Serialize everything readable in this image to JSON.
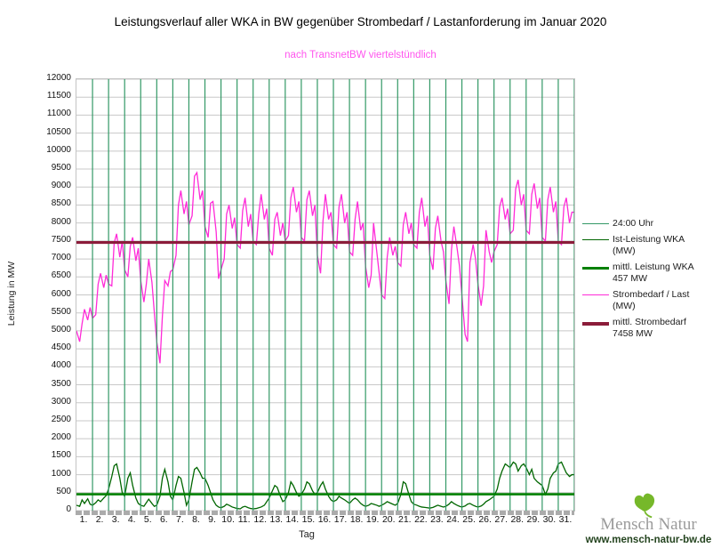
{
  "header": {
    "title": "Leistungsverlauf aller WKA in BW gegenüber  Strombedarf / Lastanforderung im Januar 2020",
    "subtitle": "nach TransnetBW viertelstündlich",
    "subtitle_color": "#ff55ee"
  },
  "axes": {
    "y_label": "Leistung in MW",
    "x_label": "Tag"
  },
  "legend": {
    "items": [
      {
        "label": "24:00 Uhr",
        "sublabel": "",
        "color": "#339966",
        "weight": 1.2
      },
      {
        "label": "Ist-Leistung WKA",
        "sublabel": "(MW)",
        "color": "#006600",
        "weight": 1.3
      },
      {
        "label": "mittl. Leistung WKA",
        "sublabel": "457 MW",
        "color": "#008000",
        "weight": 3.5
      },
      {
        "label": "Strombedarf / Last",
        "sublabel": "(MW)",
        "color": "#ff2bd8",
        "weight": 1.3
      },
      {
        "label": "mittl. Strombedarf",
        "sublabel": "7458 MW",
        "color": "#8b1c3a",
        "weight": 4
      }
    ]
  },
  "footer": {
    "brand_part1": "Mensch",
    "brand_part2": "Natur",
    "url": "www.mensch-natur-bw.de",
    "leaf_color": "#76b82a"
  },
  "chart_data": {
    "type": "line",
    "title": "Leistungsverlauf aller WKA in BW gegenüber Strombedarf / Lastanforderung im Januar 2020",
    "subtitle": "nach TransnetBW viertelstündlich",
    "xlabel": "Tag",
    "ylabel": "Leistung in MW",
    "ylim": [
      0,
      12000
    ],
    "y_step": 500,
    "day_count": 31,
    "x_ticks": [
      "1.",
      "2.",
      "3.",
      "4.",
      "5.",
      "6.",
      "7.",
      "8.",
      "9.",
      "10.",
      "11.",
      "12.",
      "13.",
      "14.",
      "15.",
      "16.",
      "17.",
      "18.",
      "19.",
      "20.",
      "21.",
      "22.",
      "23.",
      "24.",
      "25.",
      "26.",
      "27.",
      "28.",
      "29.",
      "30.",
      "31."
    ],
    "grid_color": "#c8c8c8",
    "day_line": {
      "name": "24:00 Uhr",
      "color": "#339966"
    },
    "sample_offsets": [
      0,
      0.2,
      0.35,
      0.5,
      0.7,
      0.85
    ],
    "series": [
      {
        "name": "Strombedarf / Last (MW)",
        "color": "#ff2bd8",
        "width": 1.3,
        "daily_values": [
          [
            5000,
            4700,
            5200,
            5600,
            5300,
            5650
          ],
          [
            5350,
            5450,
            6300,
            6600,
            6200,
            6550
          ],
          [
            6300,
            6250,
            7450,
            7700,
            7050,
            7500
          ],
          [
            6700,
            6500,
            7350,
            7600,
            6950,
            7300
          ],
          [
            6400,
            5800,
            6300,
            7000,
            6350,
            5500
          ],
          [
            4700,
            4100,
            5400,
            6400,
            6250,
            6650
          ],
          [
            6700,
            7100,
            8500,
            8900,
            8250,
            8600
          ],
          [
            7950,
            8200,
            9300,
            9400,
            8650,
            8900
          ],
          [
            7900,
            7600,
            8550,
            8600,
            7750,
            6450
          ],
          [
            6700,
            7000,
            8250,
            8500,
            7850,
            8150
          ],
          [
            7400,
            7300,
            8350,
            8700,
            7900,
            8250
          ],
          [
            7500,
            7400,
            8250,
            8800,
            8100,
            8400
          ],
          [
            7300,
            7100,
            8100,
            8300,
            7650,
            8000
          ],
          [
            7500,
            7650,
            8700,
            9000,
            8300,
            8600
          ],
          [
            7600,
            7500,
            8650,
            8900,
            8200,
            8500
          ],
          [
            7100,
            6600,
            8050,
            8800,
            8100,
            8300
          ],
          [
            7400,
            7300,
            8450,
            8800,
            8000,
            8300
          ],
          [
            7200,
            7100,
            8100,
            8600,
            7800,
            8000
          ],
          [
            6800,
            6200,
            6550,
            8000,
            7200,
            6600
          ],
          [
            6000,
            5900,
            7050,
            7600,
            7100,
            7350
          ],
          [
            6900,
            6800,
            7950,
            8300,
            7700,
            8000
          ],
          [
            7400,
            7300,
            8300,
            8700,
            7900,
            8200
          ],
          [
            7100,
            6700,
            7850,
            8200,
            7500,
            7200
          ],
          [
            6400,
            5750,
            7250,
            7900,
            7300,
            6800
          ],
          [
            6000,
            4900,
            4700,
            6900,
            7400,
            7000
          ],
          [
            6300,
            5700,
            6250,
            7800,
            7200,
            6900
          ],
          [
            7200,
            7400,
            8450,
            8700,
            8100,
            8400
          ],
          [
            7700,
            7800,
            8950,
            9200,
            8500,
            8800
          ],
          [
            7800,
            7700,
            8800,
            9100,
            8400,
            8700
          ],
          [
            7600,
            7500,
            8650,
            9000,
            8300,
            8600
          ],
          [
            7500,
            7400,
            8450,
            8700,
            8000,
            8300
          ]
        ]
      },
      {
        "name": "Ist-Leistung WKA (MW)",
        "color": "#006600",
        "width": 1.3,
        "daily_values": [
          [
            150,
            120,
            300,
            200,
            330,
            180
          ],
          [
            150,
            220,
            300,
            250,
            350,
            420
          ],
          [
            600,
            950,
            1250,
            1300,
            900,
            500
          ],
          [
            400,
            900,
            1050,
            700,
            350,
            200
          ],
          [
            150,
            120,
            220,
            320,
            200,
            120
          ],
          [
            150,
            400,
            900,
            1150,
            800,
            400
          ],
          [
            300,
            700,
            950,
            900,
            500,
            150
          ],
          [
            300,
            800,
            1150,
            1200,
            1050,
            900
          ],
          [
            900,
            700,
            500,
            300,
            150,
            100
          ],
          [
            80,
            120,
            180,
            150,
            100,
            80
          ],
          [
            60,
            50,
            100,
            120,
            80,
            60
          ],
          [
            50,
            60,
            80,
            100,
            150,
            250
          ],
          [
            350,
            550,
            700,
            650,
            400,
            250
          ],
          [
            300,
            500,
            800,
            700,
            500,
            400
          ],
          [
            450,
            600,
            800,
            750,
            550,
            450
          ],
          [
            500,
            700,
            800,
            600,
            400,
            300
          ],
          [
            250,
            300,
            400,
            350,
            300,
            250
          ],
          [
            200,
            300,
            350,
            300,
            200,
            150
          ],
          [
            120,
            150,
            200,
            180,
            150,
            120
          ],
          [
            150,
            200,
            250,
            220,
            180,
            150
          ],
          [
            200,
            450,
            800,
            750,
            450,
            250
          ],
          [
            180,
            150,
            120,
            100,
            90,
            80
          ],
          [
            70,
            90,
            120,
            150,
            120,
            100
          ],
          [
            120,
            180,
            250,
            200,
            150,
            120
          ],
          [
            100,
            130,
            180,
            200,
            150,
            120
          ],
          [
            100,
            130,
            180,
            250,
            300,
            350
          ],
          [
            400,
            600,
            900,
            1100,
            1300,
            1250
          ],
          [
            1200,
            1350,
            1300,
            1100,
            1250,
            1300
          ],
          [
            1200,
            1000,
            1150,
            900,
            800,
            750
          ],
          [
            700,
            450,
            600,
            900,
            1050,
            1100
          ],
          [
            1300,
            1350,
            1200,
            1050,
            950,
            1000
          ]
        ]
      }
    ],
    "mean_lines": [
      {
        "name": "mittl. Strombedarf",
        "value": 7458,
        "color": "#8b1c3a",
        "width": 3.2
      },
      {
        "name": "mittl. Leistung WKA",
        "value": 457,
        "color": "#008000",
        "width": 2.6
      }
    ]
  }
}
